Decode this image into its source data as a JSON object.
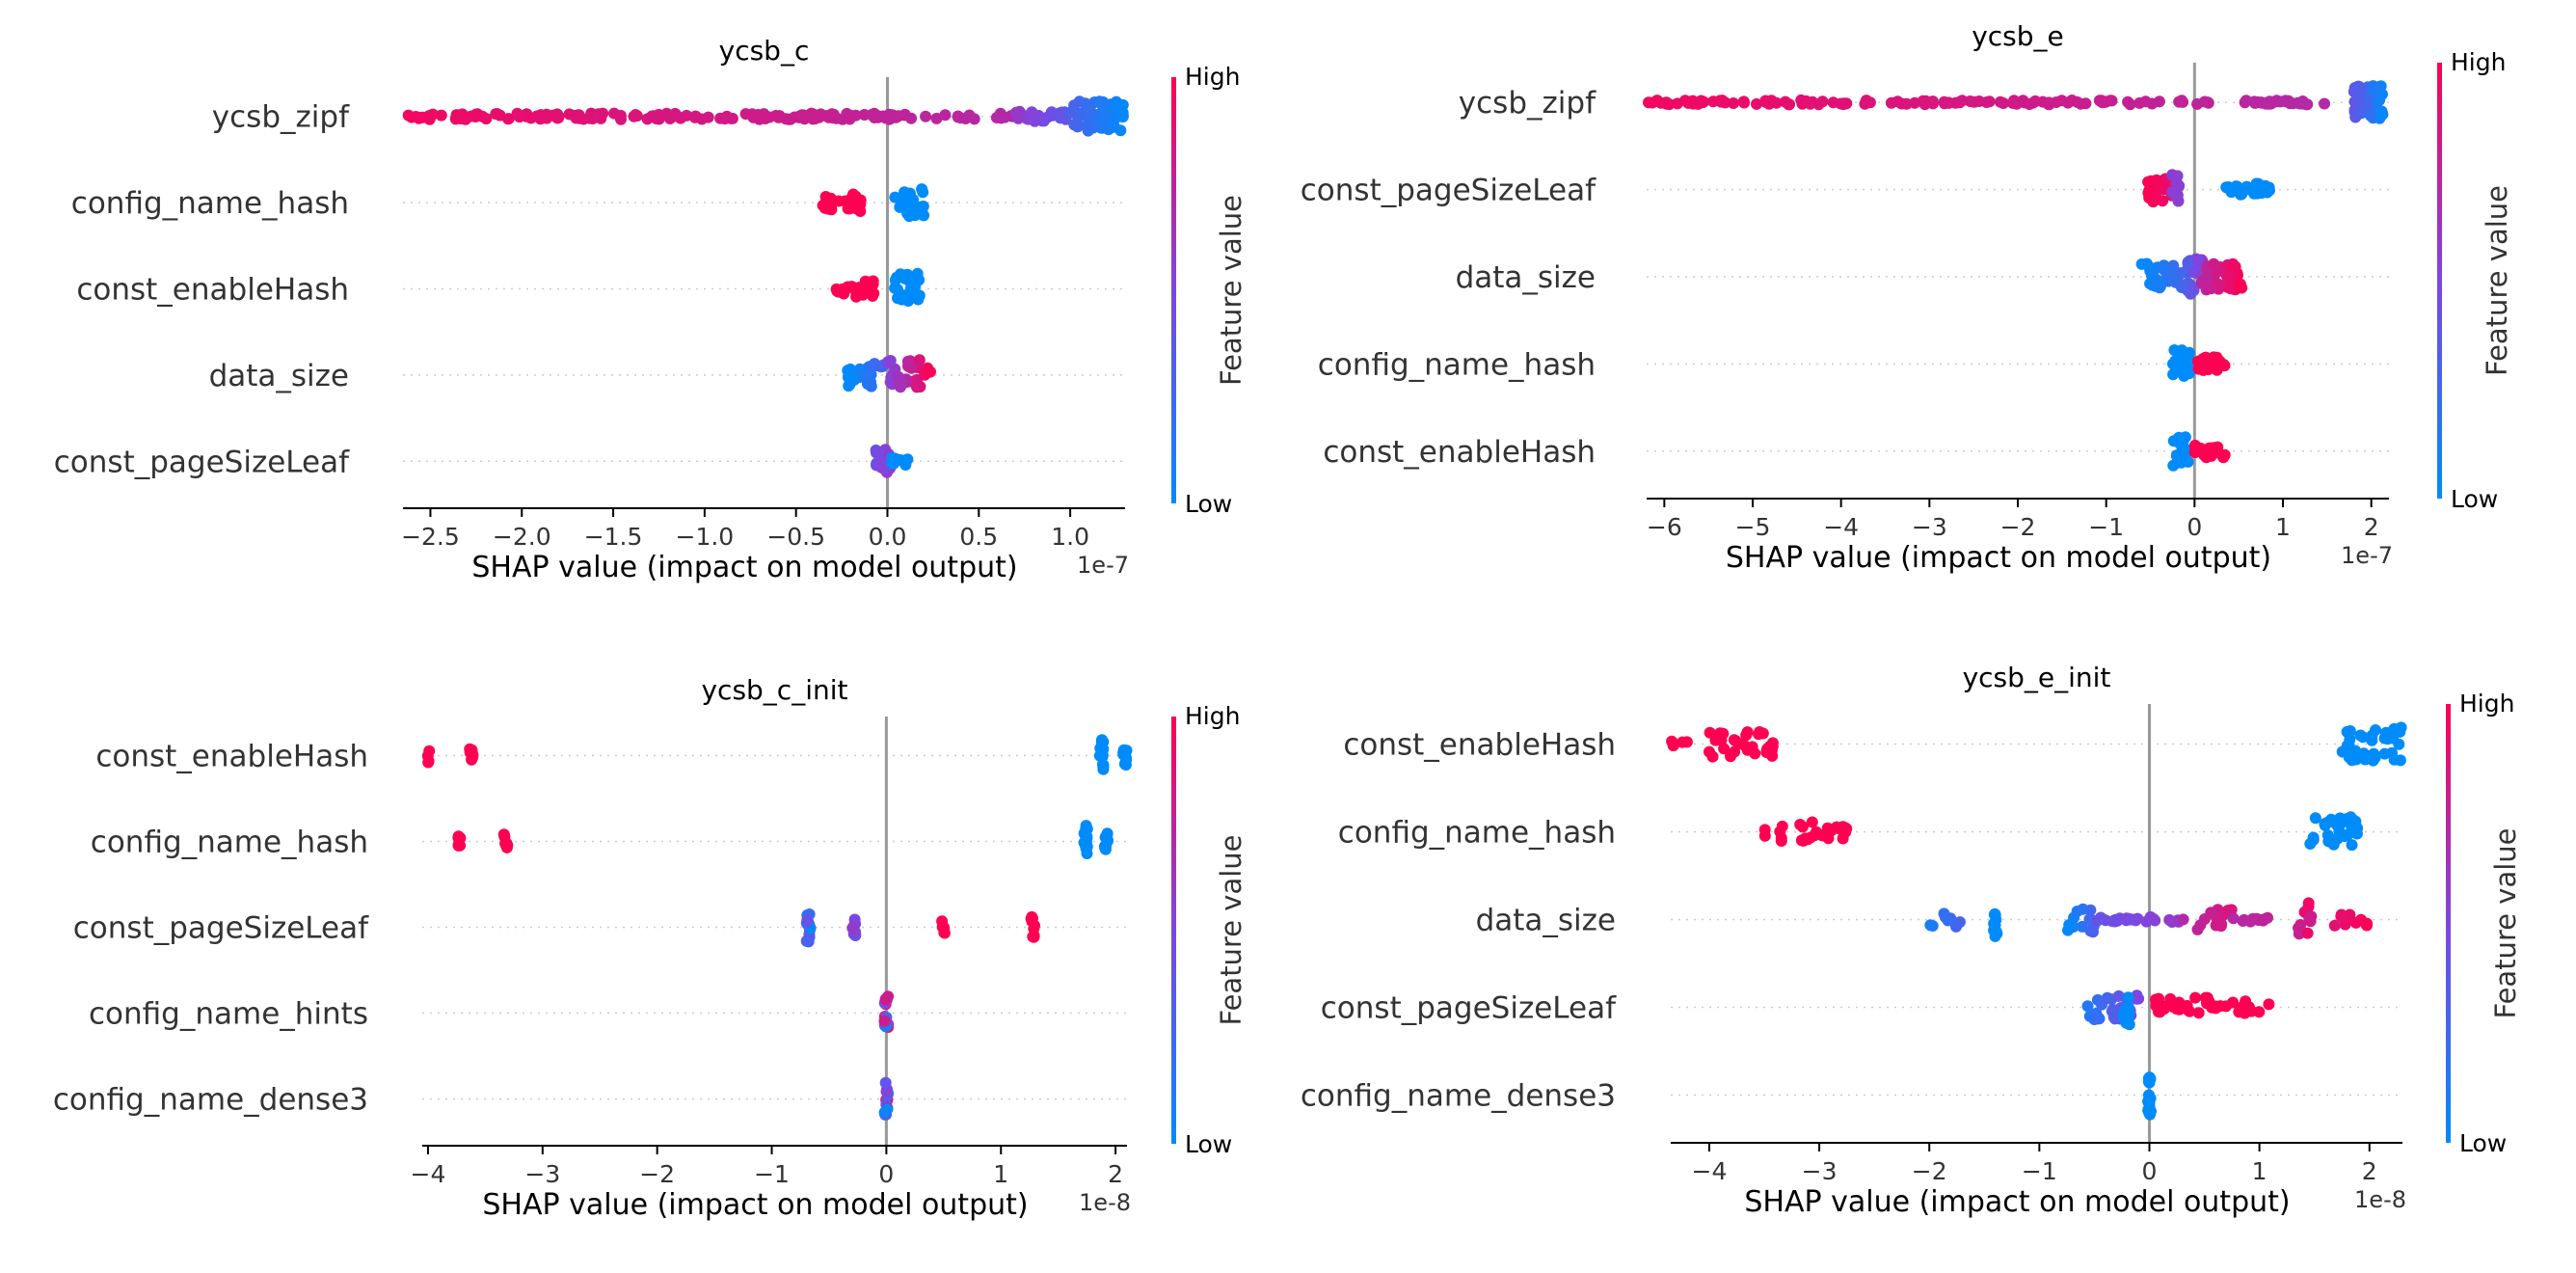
{
  "colors": {
    "low": "#008bfb",
    "high": "#ff0052",
    "axis": "#000000",
    "zero_line": "#999999",
    "grid": "#cccccc",
    "label": "#333333"
  },
  "chart_data": [
    {
      "type": "scatter",
      "subtype": "shap-beeswarm",
      "title": "ycsb_c",
      "xlabel": "SHAP value (impact on model output)",
      "offset_label": "1e-7",
      "xlim": [
        -2.65,
        1.3
      ],
      "xticks": [
        -2.5,
        -2.0,
        -1.5,
        -1.0,
        -0.5,
        0.0,
        0.5,
        1.0
      ],
      "xtick_labels": [
        "−2.5",
        "−2.0",
        "−1.5",
        "−1.0",
        "−0.5",
        "0.0",
        "0.5",
        "1.0"
      ],
      "colorbar": {
        "label": "Feature value",
        "high": "High",
        "low": "Low"
      },
      "features": [
        {
          "name": "ycsb_zipf",
          "clusters": [
            {
              "x0": -2.65,
              "x1": 0.7,
              "n": 180,
              "w": 0.07,
              "c0": 0.95,
              "c1": 0.7
            },
            {
              "x0": 0.7,
              "x1": 1.0,
              "n": 25,
              "w": 0.12,
              "c0": 0.6,
              "c1": 0.35
            },
            {
              "x0": 1.0,
              "x1": 1.3,
              "n": 60,
              "w": 0.35,
              "c0": 0.3,
              "c1": 0.0
            }
          ]
        },
        {
          "name": "config_name_hash",
          "clusters": [
            {
              "x0": -0.38,
              "x1": -0.12,
              "n": 22,
              "w": 0.2,
              "c0": 1.0,
              "c1": 1.0
            },
            {
              "x0": 0.04,
              "x1": 0.2,
              "n": 25,
              "w": 0.32,
              "c0": 0.0,
              "c1": 0.0
            }
          ]
        },
        {
          "name": "const_enableHash",
          "clusters": [
            {
              "x0": -0.3,
              "x1": -0.06,
              "n": 22,
              "w": 0.2,
              "c0": 1.0,
              "c1": 1.0
            },
            {
              "x0": 0.04,
              "x1": 0.18,
              "n": 25,
              "w": 0.36,
              "c0": 0.0,
              "c1": 0.0
            }
          ]
        },
        {
          "name": "data_size",
          "clusters": [
            {
              "x0": -0.22,
              "x1": 0.0,
              "n": 25,
              "w": 0.3,
              "c0": 0.0,
              "c1": 0.3
            },
            {
              "x0": 0.0,
              "x1": 0.24,
              "n": 30,
              "w": 0.35,
              "c0": 0.5,
              "c1": 1.0
            }
          ]
        },
        {
          "name": "const_pageSizeLeaf",
          "clusters": [
            {
              "x0": -0.08,
              "x1": 0.02,
              "n": 18,
              "w": 0.28,
              "c0": 0.4,
              "c1": 0.6
            },
            {
              "x0": 0.02,
              "x1": 0.14,
              "n": 10,
              "w": 0.1,
              "c0": 0.0,
              "c1": 0.0
            }
          ]
        }
      ]
    },
    {
      "type": "scatter",
      "subtype": "shap-beeswarm",
      "title": "ycsb_e",
      "xlabel": "SHAP value (impact on model output)",
      "offset_label": "1e-7",
      "xlim": [
        -6.2,
        2.2
      ],
      "xticks": [
        -6,
        -5,
        -4,
        -3,
        -2,
        -1,
        0,
        1,
        2
      ],
      "xtick_labels": [
        "−6",
        "−5",
        "−4",
        "−3",
        "−2",
        "−1",
        "0",
        "1",
        "2"
      ],
      "colorbar": {
        "label": "Feature value",
        "high": "High",
        "low": "Low"
      },
      "features": [
        {
          "name": "ycsb_zipf",
          "clusters": [
            {
              "x0": -6.2,
              "x1": 1.5,
              "n": 150,
              "w": 0.05,
              "c0": 0.95,
              "c1": 0.7
            },
            {
              "x0": 1.8,
              "x1": 2.15,
              "n": 60,
              "w": 0.38,
              "c0": 0.4,
              "c1": 0.0
            }
          ]
        },
        {
          "name": "const_pageSizeLeaf",
          "clusters": [
            {
              "x0": -0.55,
              "x1": -0.25,
              "n": 30,
              "w": 0.28,
              "c0": 1.0,
              "c1": 0.9
            },
            {
              "x0": -0.35,
              "x1": -0.15,
              "n": 10,
              "w": 0.34,
              "c0": 0.55,
              "c1": 0.55
            },
            {
              "x0": 0.35,
              "x1": 0.85,
              "n": 28,
              "w": 0.14,
              "c0": 0.0,
              "c1": 0.0
            }
          ]
        },
        {
          "name": "data_size",
          "clusters": [
            {
              "x0": -0.6,
              "x1": -0.05,
              "n": 45,
              "w": 0.3,
              "c0": 0.0,
              "c1": 0.3
            },
            {
              "x0": -0.1,
              "x1": 0.1,
              "n": 25,
              "w": 0.42,
              "c0": 0.3,
              "c1": 0.6
            },
            {
              "x0": 0.05,
              "x1": 0.55,
              "n": 40,
              "w": 0.3,
              "c0": 0.7,
              "c1": 1.0
            }
          ]
        },
        {
          "name": "config_name_hash",
          "clusters": [
            {
              "x0": -0.25,
              "x1": -0.05,
              "n": 18,
              "w": 0.32,
              "c0": 0.0,
              "c1": 0.0
            },
            {
              "x0": 0.0,
              "x1": 0.35,
              "n": 20,
              "w": 0.16,
              "c0": 1.0,
              "c1": 1.0
            }
          ]
        },
        {
          "name": "const_enableHash",
          "clusters": [
            {
              "x0": -0.25,
              "x1": -0.05,
              "n": 18,
              "w": 0.34,
              "c0": 0.0,
              "c1": 0.0
            },
            {
              "x0": 0.0,
              "x1": 0.35,
              "n": 20,
              "w": 0.16,
              "c0": 1.0,
              "c1": 1.0
            }
          ]
        }
      ]
    },
    {
      "type": "scatter",
      "subtype": "shap-beeswarm",
      "title": "ycsb_c_init",
      "xlabel": "SHAP value (impact on model output)",
      "offset_label": "1e-8",
      "xlim": [
        -4.05,
        2.1
      ],
      "xticks": [
        -4,
        -3,
        -2,
        -1,
        0,
        1,
        2
      ],
      "xtick_labels": [
        "−4",
        "−3",
        "−2",
        "−1",
        "0",
        "1",
        "2"
      ],
      "colorbar": {
        "label": "Feature value",
        "high": "High",
        "low": "Low"
      },
      "features": [
        {
          "name": "const_enableHash",
          "clusters": [
            {
              "x0": -4.0,
              "x1": -4.0,
              "n": 4,
              "w": 0.18,
              "c0": 1.0,
              "c1": 1.0
            },
            {
              "x0": -3.62,
              "x1": -3.62,
              "n": 8,
              "w": 0.2,
              "c0": 1.0,
              "c1": 1.0
            },
            {
              "x0": 1.88,
              "x1": 1.88,
              "n": 16,
              "w": 0.38,
              "c0": 0.0,
              "c1": 0.0
            },
            {
              "x0": 2.08,
              "x1": 2.08,
              "n": 10,
              "w": 0.22,
              "c0": 0.0,
              "c1": 0.0
            }
          ]
        },
        {
          "name": "config_name_hash",
          "clusters": [
            {
              "x0": -3.72,
              "x1": -3.72,
              "n": 6,
              "w": 0.14,
              "c0": 1.0,
              "c1": 1.0
            },
            {
              "x0": -3.32,
              "x1": -3.32,
              "n": 8,
              "w": 0.22,
              "c0": 1.0,
              "c1": 1.0
            },
            {
              "x0": 1.74,
              "x1": 1.74,
              "n": 16,
              "w": 0.38,
              "c0": 0.0,
              "c1": 0.0
            },
            {
              "x0": 1.92,
              "x1": 1.92,
              "n": 10,
              "w": 0.2,
              "c0": 0.0,
              "c1": 0.0
            }
          ]
        },
        {
          "name": "const_pageSizeLeaf",
          "clusters": [
            {
              "x0": -0.68,
              "x1": -0.68,
              "n": 14,
              "w": 0.34,
              "c0": 0.0,
              "c1": 0.45
            },
            {
              "x0": -0.28,
              "x1": -0.28,
              "n": 9,
              "w": 0.22,
              "c0": 0.3,
              "c1": 0.6
            },
            {
              "x0": 0.5,
              "x1": 0.5,
              "n": 6,
              "w": 0.14,
              "c0": 1.0,
              "c1": 1.0
            },
            {
              "x0": 1.28,
              "x1": 1.28,
              "n": 9,
              "w": 0.24,
              "c0": 1.0,
              "c1": 1.0
            }
          ]
        },
        {
          "name": "config_name_hints",
          "clusters": [
            {
              "x0": 0.0,
              "x1": 0.0,
              "n": 16,
              "w": 0.4,
              "c0": 0.0,
              "c1": 1.0
            }
          ]
        },
        {
          "name": "config_name_dense3",
          "clusters": [
            {
              "x0": 0.0,
              "x1": 0.0,
              "n": 16,
              "w": 0.4,
              "c0": 0.0,
              "c1": 1.0
            }
          ]
        }
      ]
    },
    {
      "type": "scatter",
      "subtype": "shap-beeswarm",
      "title": "ycsb_e_init",
      "xlabel": "SHAP value (impact on model output)",
      "offset_label": "1e-8",
      "xlim": [
        -4.35,
        2.3
      ],
      "xticks": [
        -4,
        -3,
        -2,
        -1,
        0,
        1,
        2
      ],
      "xtick_labels": [
        "−4",
        "−3",
        "−2",
        "−1",
        "0",
        "1",
        "2"
      ],
      "colorbar": {
        "label": "Feature value",
        "high": "High",
        "low": "Low"
      },
      "features": [
        {
          "name": "const_enableHash",
          "clusters": [
            {
              "x0": -4.35,
              "x1": -4.2,
              "n": 4,
              "w": 0.06,
              "c0": 1.0,
              "c1": 1.0
            },
            {
              "x0": -4.05,
              "x1": -3.4,
              "n": 30,
              "w": 0.3,
              "c0": 1.0,
              "c1": 1.0
            },
            {
              "x0": 1.75,
              "x1": 2.3,
              "n": 35,
              "w": 0.38,
              "c0": 0.0,
              "c1": 0.0
            }
          ]
        },
        {
          "name": "config_name_hash",
          "clusters": [
            {
              "x0": -3.55,
              "x1": -2.75,
              "n": 28,
              "w": 0.22,
              "c0": 1.0,
              "c1": 1.0
            },
            {
              "x0": 1.45,
              "x1": 1.9,
              "n": 30,
              "w": 0.38,
              "c0": 0.0,
              "c1": 0.0
            }
          ]
        },
        {
          "name": "data_size",
          "clusters": [
            {
              "x0": -2.0,
              "x1": -1.7,
              "n": 8,
              "w": 0.2,
              "c0": 0.1,
              "c1": 0.3
            },
            {
              "x0": -1.4,
              "x1": -1.4,
              "n": 10,
              "w": 0.4,
              "c0": 0.0,
              "c1": 0.0
            },
            {
              "x0": -0.75,
              "x1": -0.5,
              "n": 14,
              "w": 0.3,
              "c0": 0.0,
              "c1": 0.3
            },
            {
              "x0": -0.5,
              "x1": 0.3,
              "n": 25,
              "w": 0.06,
              "c0": 0.4,
              "c1": 0.6
            },
            {
              "x0": 0.3,
              "x1": 0.75,
              "n": 16,
              "w": 0.25,
              "c0": 0.7,
              "c1": 0.85
            },
            {
              "x0": 0.75,
              "x1": 1.35,
              "n": 10,
              "w": 0.06,
              "c0": 0.7,
              "c1": 0.8
            },
            {
              "x0": 1.35,
              "x1": 1.45,
              "n": 10,
              "w": 0.38,
              "c0": 0.75,
              "c1": 0.95
            },
            {
              "x0": 1.45,
              "x1": 2.0,
              "n": 14,
              "w": 0.15,
              "c0": 0.8,
              "c1": 1.0
            }
          ]
        },
        {
          "name": "const_pageSizeLeaf",
          "clusters": [
            {
              "x0": -0.6,
              "x1": -0.1,
              "n": 30,
              "w": 0.28,
              "c0": 0.1,
              "c1": 0.5
            },
            {
              "x0": -0.25,
              "x1": -0.15,
              "n": 10,
              "w": 0.45,
              "c0": 0.0,
              "c1": 0.0
            },
            {
              "x0": 0.05,
              "x1": 0.55,
              "n": 25,
              "w": 0.22,
              "c0": 1.0,
              "c1": 1.0
            },
            {
              "x0": 0.55,
              "x1": 1.1,
              "n": 14,
              "w": 0.14,
              "c0": 1.0,
              "c1": 1.0
            }
          ]
        },
        {
          "name": "config_name_dense3",
          "clusters": [
            {
              "x0": 0.0,
              "x1": 0.0,
              "n": 16,
              "w": 0.45,
              "c0": 0.0,
              "c1": 0.0
            }
          ]
        }
      ]
    }
  ]
}
